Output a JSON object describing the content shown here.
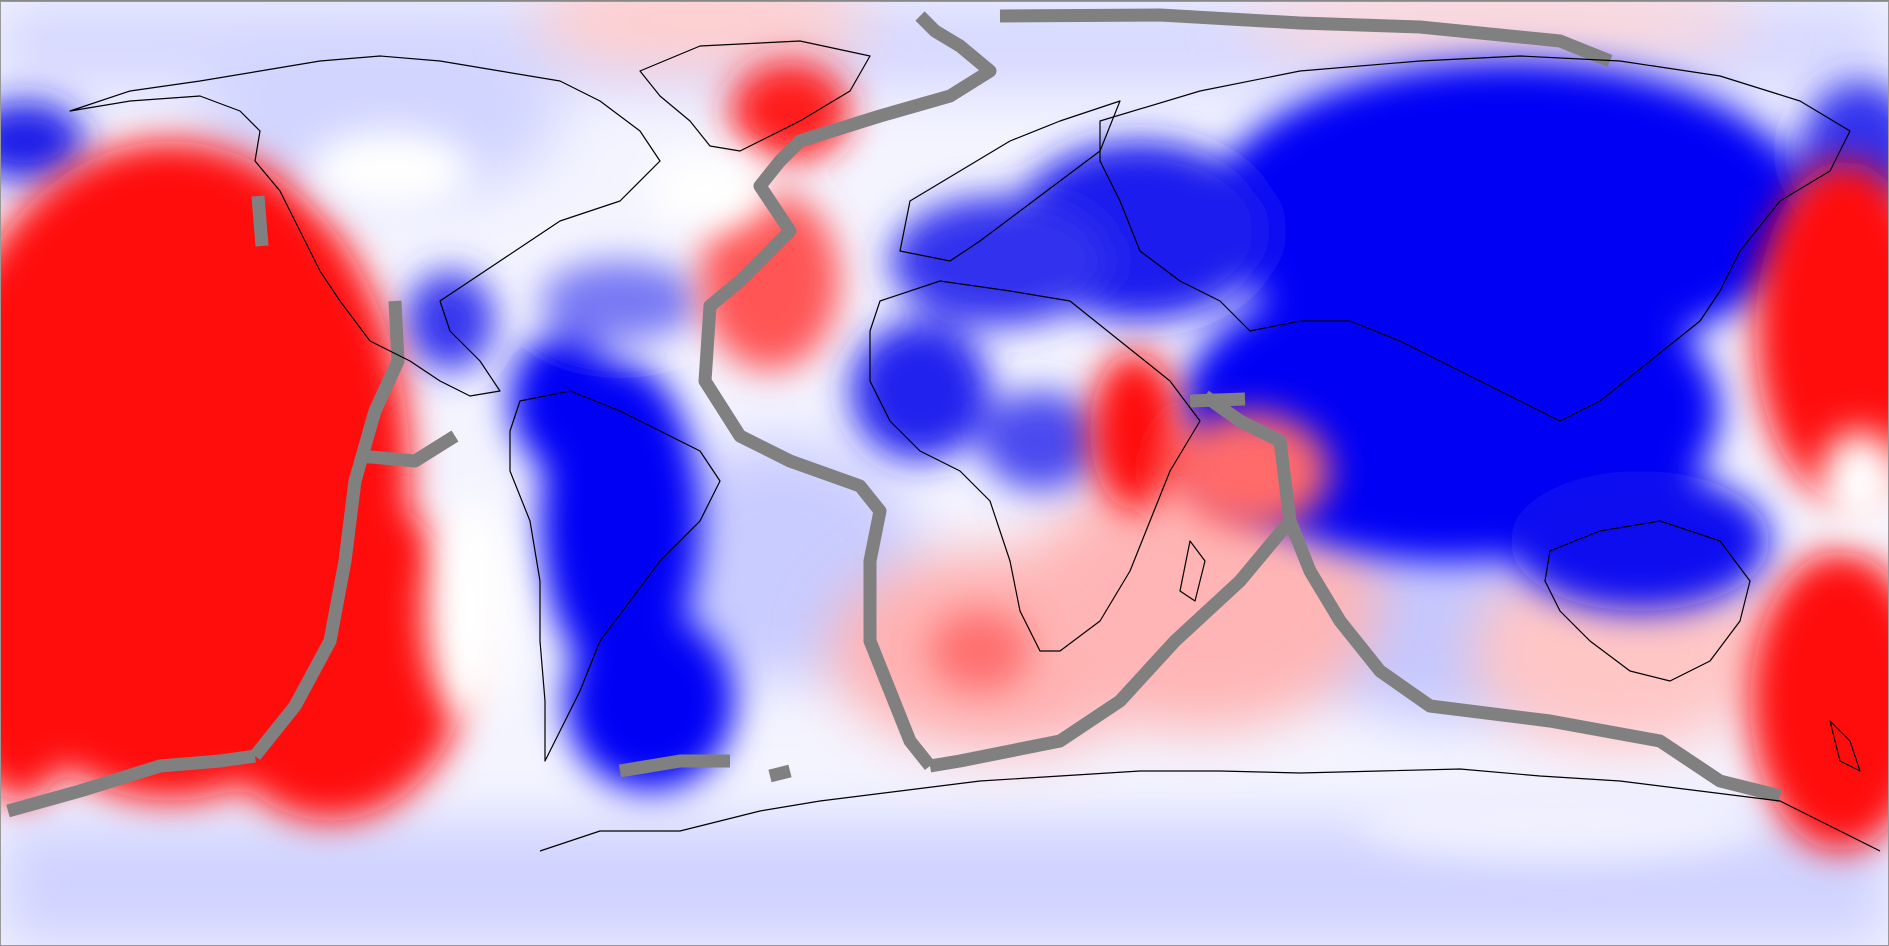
{
  "map": {
    "projection": "equirectangular",
    "extent": "global",
    "colormap": {
      "positive": "#ff0000",
      "negative": "#0000ff",
      "neutral": "#ffffff"
    },
    "overlays": {
      "coastlines_color": "#000000",
      "plate_boundaries_color": "#808080"
    }
  }
}
